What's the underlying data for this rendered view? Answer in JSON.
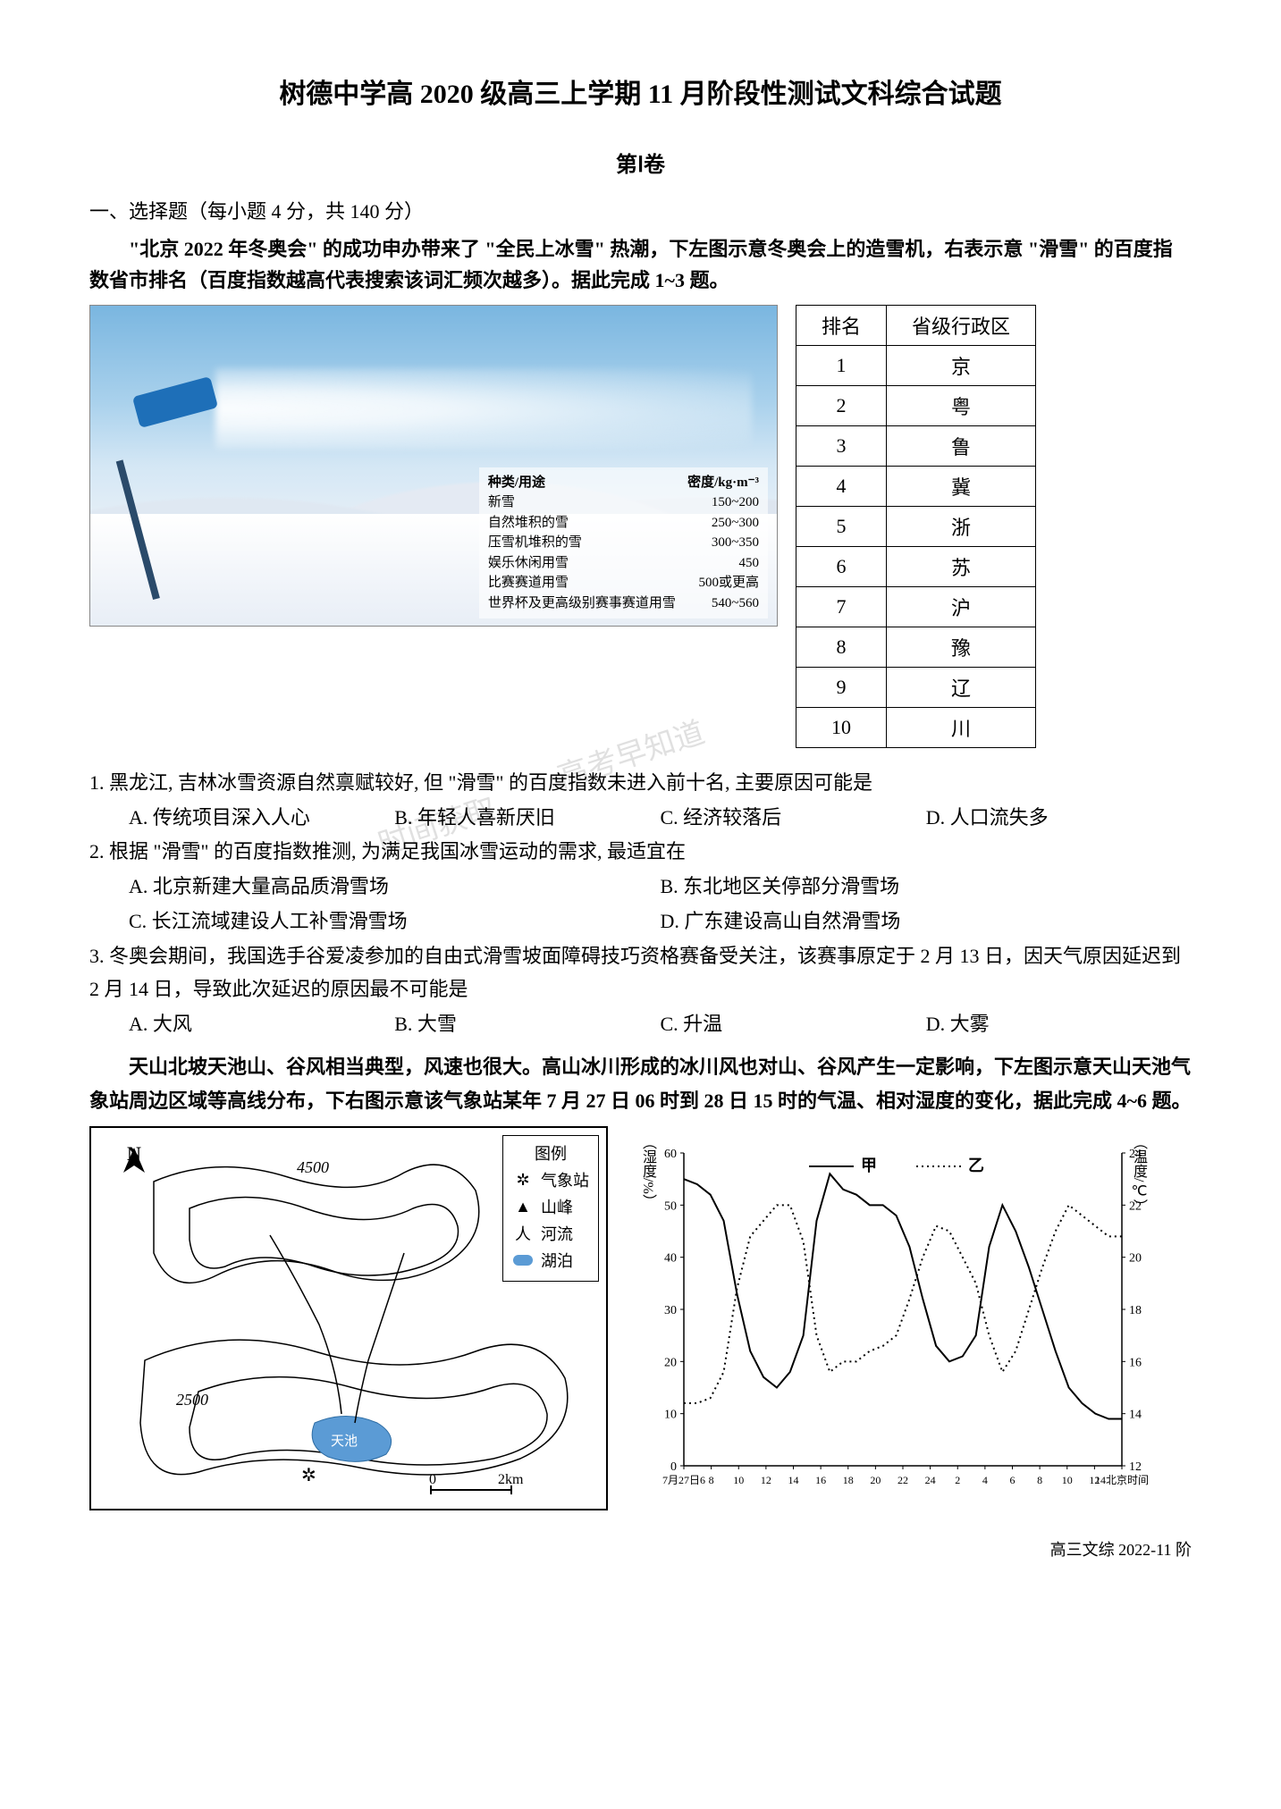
{
  "title": "树德中学高 2020 级高三上学期 11 月阶段性测试文科综合试题",
  "section": "第Ⅰ卷",
  "mc_header": "一、选择题（每小题 4 分，共 140 分）",
  "intro1": "\"北京 2022 年冬奥会\" 的成功申办带来了 \"全民上冰雪\" 热潮，下左图示意冬奥会上的造雪机，右表示意 \"滑雪\" 的百度指数省市排名（百度指数越高代表搜索该词汇频次越多）。据此完成 1~3 题。",
  "density": {
    "header_type": "种类/用途",
    "header_val": "密度/kg·m⁻³",
    "rows": [
      {
        "t": "新雪",
        "v": "150~200"
      },
      {
        "t": "自然堆积的雪",
        "v": "250~300"
      },
      {
        "t": "压雪机堆积的雪",
        "v": "300~350"
      },
      {
        "t": "娱乐休闲用雪",
        "v": "450"
      },
      {
        "t": "比赛赛道用雪",
        "v": "500或更高"
      },
      {
        "t": "世界杯及更高级别赛事赛道用雪",
        "v": "540~560"
      }
    ]
  },
  "rank_table": {
    "h1": "排名",
    "h2": "省级行政区",
    "rows": [
      {
        "n": "1",
        "p": "京"
      },
      {
        "n": "2",
        "p": "粤"
      },
      {
        "n": "3",
        "p": "鲁"
      },
      {
        "n": "4",
        "p": "冀"
      },
      {
        "n": "5",
        "p": "浙"
      },
      {
        "n": "6",
        "p": "苏"
      },
      {
        "n": "7",
        "p": "沪"
      },
      {
        "n": "8",
        "p": "豫"
      },
      {
        "n": "9",
        "p": "辽"
      },
      {
        "n": "10",
        "p": "川"
      }
    ]
  },
  "q1": {
    "stem": "1. 黑龙江, 吉林冰雪资源自然禀赋较好, 但 \"滑雪\" 的百度指数未进入前十名, 主要原因可能是",
    "A": "A. 传统项目深入人心",
    "B": "B. 年轻人喜新厌旧",
    "C": "C. 经济较落后",
    "D": "D. 人口流失多"
  },
  "q2": {
    "stem": "2. 根据 \"滑雪\" 的百度指数推测, 为满足我国冰雪运动的需求, 最适宜在",
    "A": "A. 北京新建大量高品质滑雪场",
    "B": "B. 东北地区关停部分滑雪场",
    "C": "C. 长江流域建设人工补雪滑雪场",
    "D": "D. 广东建设高山自然滑雪场"
  },
  "q3": {
    "stem": "3. 冬奥会期间，我国选手谷爱凌参加的自由式滑雪坡面障碍技巧资格赛备受关注，该赛事原定于 2 月 13 日，因天气原因延迟到 2 月 14 日，导致此次延迟的原因最不可能是",
    "A": "A. 大风",
    "B": "B. 大雪",
    "C": "C. 升温",
    "D": "D. 大雾"
  },
  "intro2": "天山北坡天池山、谷风相当典型，风速也很大。高山冰川形成的冰川风也对山、谷风产生一定影响，下左图示意天山天池气象站周边区域等高线分布，下右图示意该气象站某年 7 月 27 日 06 时到 28 日 15 时的气温、相对湿度的变化，据此完成 4~6 题。",
  "map": {
    "legend_title": "图例",
    "legend": [
      {
        "sym": "✲",
        "label": "气象站"
      },
      {
        "sym": "▲",
        "label": "山峰"
      },
      {
        "sym": "人",
        "label": "河流"
      },
      {
        "sym": "●",
        "label": "湖泊",
        "color": "#5b9bd5"
      }
    ],
    "scale": "0        2km",
    "contours": [
      "4500",
      "2500"
    ],
    "north": "N",
    "lake": "天池"
  },
  "chart": {
    "y_left_label": "（湿度/%）",
    "y_right_label": "（温度/℃）",
    "y_left_ticks": [
      60,
      50,
      40,
      30,
      20,
      10,
      0
    ],
    "y_right_ticks": [
      24,
      22,
      20,
      18,
      16,
      14,
      12
    ],
    "x_ticks": [
      "7月27日6",
      "8",
      "10",
      "12",
      "14",
      "16",
      "18",
      "20",
      "22",
      "24",
      "2",
      "4",
      "6",
      "8",
      "10",
      "12",
      "14北京时间"
    ],
    "legend_solid": "甲",
    "legend_dotted": "乙",
    "series_solid": [
      55,
      54,
      52,
      47,
      33,
      22,
      17,
      15,
      18,
      25,
      47,
      56,
      53,
      52,
      50,
      50,
      48,
      42,
      32,
      23,
      20,
      21,
      25,
      42,
      50,
      45,
      38,
      30,
      22,
      15,
      12,
      10,
      9,
      9
    ],
    "series_dotted": [
      12,
      12,
      13,
      18,
      34,
      44,
      47,
      50,
      50,
      43,
      25,
      18,
      20,
      20,
      22,
      23,
      25,
      32,
      40,
      46,
      45,
      40,
      35,
      25,
      18,
      22,
      30,
      38,
      45,
      50,
      48,
      46,
      44,
      44
    ],
    "colors": {
      "line": "#000000",
      "bg": "#ffffff",
      "axis": "#000000"
    }
  },
  "footer": "高三文综   2022-11 阶",
  "watermarks": [
    "高考早知道",
    "时间获取"
  ]
}
